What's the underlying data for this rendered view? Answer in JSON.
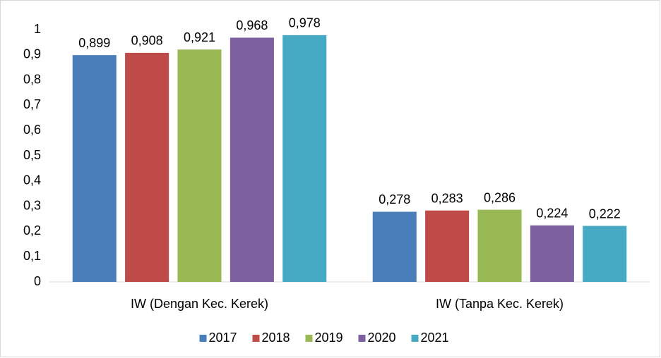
{
  "chart_data": {
    "type": "bar",
    "categories": [
      "IW (Dengan Kec. Kerek)",
      "IW (Tanpa Kec. Kerek)"
    ],
    "series": [
      {
        "name": "2017",
        "color": "#4a7ebb",
        "values": [
          0.899,
          0.278
        ],
        "value_labels": [
          "0,899",
          "0,278"
        ]
      },
      {
        "name": "2018",
        "color": "#be4b48",
        "values": [
          0.908,
          0.283
        ],
        "value_labels": [
          "0,908",
          "0,283"
        ]
      },
      {
        "name": "2019",
        "color": "#98b954",
        "values": [
          0.921,
          0.286
        ],
        "value_labels": [
          "0,921",
          "0,286"
        ]
      },
      {
        "name": "2020",
        "color": "#7d60a0",
        "values": [
          0.968,
          0.224
        ],
        "value_labels": [
          "0,968",
          "0,224"
        ]
      },
      {
        "name": "2021",
        "color": "#46aac5",
        "values": [
          0.978,
          0.222
        ],
        "value_labels": [
          "0,978",
          "0,222"
        ]
      }
    ],
    "ylim": [
      0,
      1
    ],
    "yticks": [
      0,
      {
        "value": 0.1,
        "label": "0,1"
      },
      {
        "value": 0.2,
        "label": "0,2"
      },
      {
        "value": 0.3,
        "label": "0,3"
      },
      {
        "value": 0.4,
        "label": "0,4"
      },
      {
        "value": 0.5,
        "label": "0,5"
      },
      {
        "value": 0.6,
        "label": "0,6"
      },
      {
        "value": 0.7,
        "label": "0,7"
      },
      {
        "value": 0.8,
        "label": "0,8"
      },
      {
        "value": 0.9,
        "label": "0,9"
      },
      1
    ],
    "grid": false,
    "legend": "bottom"
  }
}
